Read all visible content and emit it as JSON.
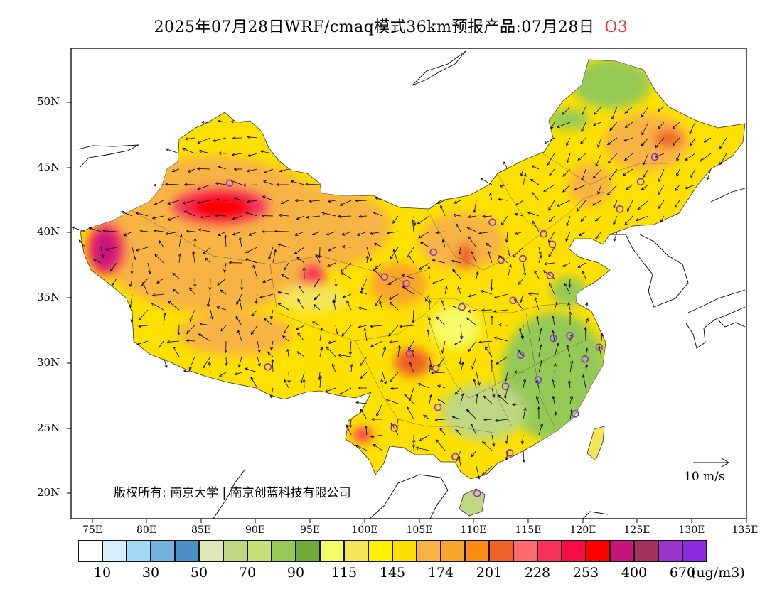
{
  "header": {
    "title": "2025年07月28日WRF/cmaq模式36km预报产品:07月28日",
    "species": "O3"
  },
  "axes": {
    "lat_labels": [
      "50N",
      "45N",
      "40N",
      "35N",
      "30N",
      "25N",
      "20N"
    ],
    "lon_labels": [
      "75E",
      "80E",
      "85E",
      "90E",
      "95E",
      "100E",
      "105E",
      "110E",
      "115E",
      "120E",
      "125E",
      "130E",
      "135E"
    ]
  },
  "legend": {
    "colors": [
      "#ffffff",
      "#d6eefa",
      "#a3d9f3",
      "#74b2de",
      "#4a90c4",
      "#dde8b6",
      "#bfd782",
      "#c6e07a",
      "#94c957",
      "#6fab38",
      "#f5fa67",
      "#f5e559",
      "#fff200",
      "#fde000",
      "#f8b345",
      "#f9a52c",
      "#fb8b13",
      "#ee6027",
      "#fd6b70",
      "#f6325a",
      "#f50c48",
      "#ff0000",
      "#c7157c",
      "#a3315b",
      "#9a34cf",
      "#8a2be2"
    ],
    "labels": [
      "10",
      "30",
      "50",
      "70",
      "90",
      "115",
      "145",
      "174",
      "201",
      "228",
      "253",
      "400",
      "670"
    ],
    "unit": "(ug/m3)"
  },
  "map_labels": {
    "copyright": "版权所有: 南京大学 | 南京创蓝科技有限公司",
    "wind_scale": "10 m/s"
  },
  "stations": [
    {
      "lon": 87.6,
      "lat": 43.8
    },
    {
      "lon": 101.8,
      "lat": 36.6
    },
    {
      "lon": 103.8,
      "lat": 36.1
    },
    {
      "lon": 106.3,
      "lat": 38.5
    },
    {
      "lon": 111.7,
      "lat": 40.8
    },
    {
      "lon": 112.5,
      "lat": 37.9
    },
    {
      "lon": 114.5,
      "lat": 38.0
    },
    {
      "lon": 116.4,
      "lat": 39.9
    },
    {
      "lon": 117.2,
      "lat": 39.1
    },
    {
      "lon": 117.0,
      "lat": 36.7
    },
    {
      "lon": 113.6,
      "lat": 34.8
    },
    {
      "lon": 108.9,
      "lat": 34.3
    },
    {
      "lon": 104.1,
      "lat": 30.7
    },
    {
      "lon": 106.5,
      "lat": 29.6
    },
    {
      "lon": 106.7,
      "lat": 26.6
    },
    {
      "lon": 102.7,
      "lat": 25.0
    },
    {
      "lon": 108.3,
      "lat": 22.8
    },
    {
      "lon": 113.3,
      "lat": 23.1
    },
    {
      "lon": 110.3,
      "lat": 20.0
    },
    {
      "lon": 119.3,
      "lat": 26.1
    },
    {
      "lon": 112.9,
      "lat": 28.2
    },
    {
      "lon": 115.9,
      "lat": 28.7
    },
    {
      "lon": 114.3,
      "lat": 30.6
    },
    {
      "lon": 117.3,
      "lat": 31.9
    },
    {
      "lon": 118.8,
      "lat": 32.1
    },
    {
      "lon": 120.2,
      "lat": 30.3
    },
    {
      "lon": 121.5,
      "lat": 31.2
    },
    {
      "lon": 126.6,
      "lat": 45.8
    },
    {
      "lon": 125.3,
      "lat": 43.9
    },
    {
      "lon": 123.4,
      "lat": 41.8
    },
    {
      "lon": 91.1,
      "lat": 29.7
    }
  ]
}
